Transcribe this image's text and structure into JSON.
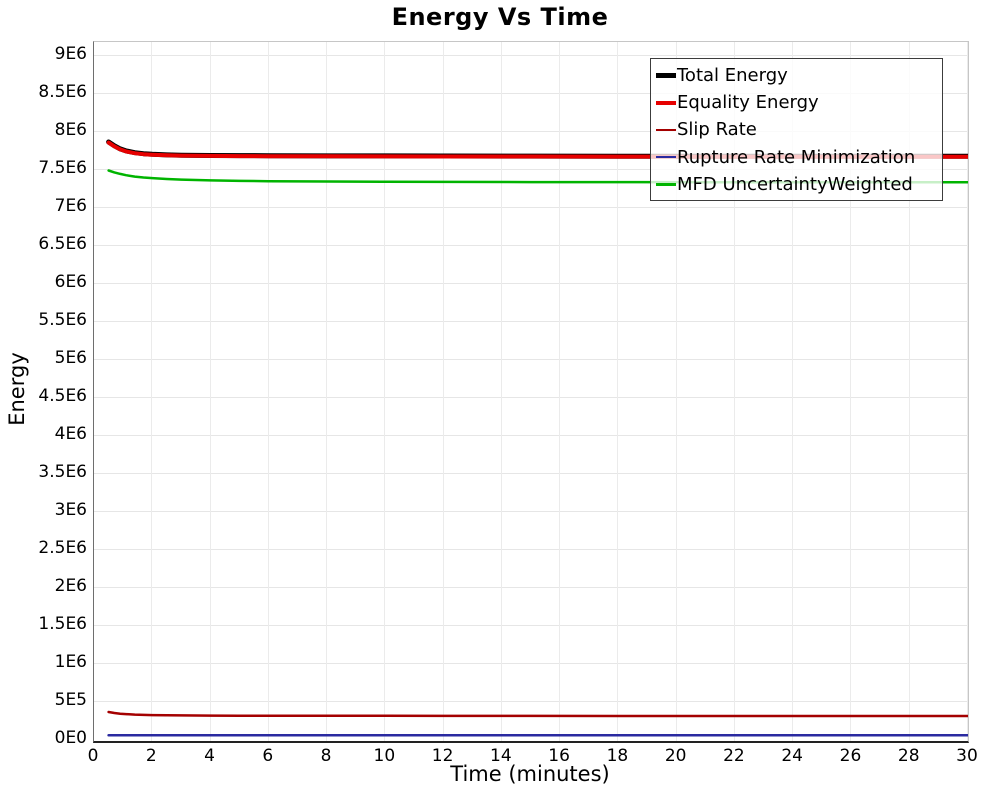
{
  "title": "Energy Vs Time",
  "chart_data": {
    "type": "line",
    "title": "Energy Vs Time",
    "xlabel": "Time (minutes)",
    "ylabel": "Energy",
    "xlim": [
      0,
      30
    ],
    "ylim": [
      0,
      9200000
    ],
    "grid": true,
    "legend_position": "top-right",
    "x_ticks": [
      {
        "v": 0,
        "label": "0"
      },
      {
        "v": 2,
        "label": "2"
      },
      {
        "v": 4,
        "label": "4"
      },
      {
        "v": 6,
        "label": "6"
      },
      {
        "v": 8,
        "label": "8"
      },
      {
        "v": 10,
        "label": "10"
      },
      {
        "v": 12,
        "label": "12"
      },
      {
        "v": 14,
        "label": "14"
      },
      {
        "v": 16,
        "label": "16"
      },
      {
        "v": 18,
        "label": "18"
      },
      {
        "v": 20,
        "label": "20"
      },
      {
        "v": 22,
        "label": "22"
      },
      {
        "v": 24,
        "label": "24"
      },
      {
        "v": 26,
        "label": "26"
      },
      {
        "v": 28,
        "label": "28"
      },
      {
        "v": 30,
        "label": "30"
      }
    ],
    "y_ticks": [
      {
        "v": 0,
        "label": "0E0"
      },
      {
        "v": 500000,
        "label": "5E5"
      },
      {
        "v": 1000000,
        "label": "1E6"
      },
      {
        "v": 1500000,
        "label": "1.5E6"
      },
      {
        "v": 2000000,
        "label": "2E6"
      },
      {
        "v": 2500000,
        "label": "2.5E6"
      },
      {
        "v": 3000000,
        "label": "3E6"
      },
      {
        "v": 3500000,
        "label": "3.5E6"
      },
      {
        "v": 4000000,
        "label": "4E6"
      },
      {
        "v": 4500000,
        "label": "4.5E6"
      },
      {
        "v": 5000000,
        "label": "5E6"
      },
      {
        "v": 5500000,
        "label": "5.5E6"
      },
      {
        "v": 6000000,
        "label": "6E6"
      },
      {
        "v": 6500000,
        "label": "6.5E6"
      },
      {
        "v": 7000000,
        "label": "7E6"
      },
      {
        "v": 7500000,
        "label": "7.5E6"
      },
      {
        "v": 8000000,
        "label": "8E6"
      },
      {
        "v": 8500000,
        "label": "8.5E6"
      },
      {
        "v": 9000000,
        "label": "9E6"
      }
    ],
    "series": [
      {
        "name": "Total Energy",
        "color": "#000000",
        "width": 5,
        "points": [
          [
            0.5,
            7855000
          ],
          [
            0.7,
            7805000
          ],
          [
            0.9,
            7765000
          ],
          [
            1.1,
            7738000
          ],
          [
            1.4,
            7715000
          ],
          [
            1.7,
            7701000
          ],
          [
            2,
            7694000
          ],
          [
            2.5,
            7686000
          ],
          [
            3,
            7682000
          ],
          [
            4,
            7678000
          ],
          [
            5,
            7676000
          ],
          [
            6,
            7675000
          ],
          [
            8,
            7673000
          ],
          [
            10,
            7672000
          ],
          [
            12,
            7671000
          ],
          [
            15,
            7670000
          ],
          [
            18,
            7669000
          ],
          [
            21,
            7668000
          ],
          [
            24,
            7667000
          ],
          [
            27,
            7667000
          ],
          [
            30,
            7667000
          ]
        ]
      },
      {
        "name": "Equality Energy",
        "color": "#e60000",
        "width": 4,
        "points": [
          [
            0.5,
            7848000
          ],
          [
            0.7,
            7798000
          ],
          [
            0.9,
            7758000
          ],
          [
            1.1,
            7731000
          ],
          [
            1.4,
            7708000
          ],
          [
            1.7,
            7695000
          ],
          [
            2,
            7688000
          ],
          [
            2.5,
            7680000
          ],
          [
            3,
            7676000
          ],
          [
            4,
            7672000
          ],
          [
            5,
            7670000
          ],
          [
            6,
            7669000
          ],
          [
            8,
            7667000
          ],
          [
            10,
            7666000
          ],
          [
            12,
            7665000
          ],
          [
            15,
            7664000
          ],
          [
            18,
            7663000
          ],
          [
            21,
            7662000
          ],
          [
            24,
            7661000
          ],
          [
            27,
            7661000
          ],
          [
            30,
            7661000
          ]
        ]
      },
      {
        "name": "Slip Rate",
        "color": "#a40000",
        "width": 2.5,
        "points": [
          [
            0.5,
            355000
          ],
          [
            0.7,
            342000
          ],
          [
            0.9,
            333000
          ],
          [
            1.1,
            327000
          ],
          [
            1.4,
            321000
          ],
          [
            1.7,
            317000
          ],
          [
            2,
            315000
          ],
          [
            2.5,
            312000
          ],
          [
            3,
            310000
          ],
          [
            4,
            308000
          ],
          [
            5,
            307000
          ],
          [
            6,
            306000
          ],
          [
            8,
            305000
          ],
          [
            10,
            305000
          ],
          [
            12,
            304000
          ],
          [
            15,
            304000
          ],
          [
            18,
            303000
          ],
          [
            21,
            303000
          ],
          [
            24,
            303000
          ],
          [
            27,
            302000
          ],
          [
            30,
            302000
          ]
        ]
      },
      {
        "name": "Rupture Rate Minimization",
        "color": "#2a2aa0",
        "width": 2.5,
        "points": [
          [
            0.5,
            50000
          ],
          [
            5,
            50000
          ],
          [
            10,
            50000
          ],
          [
            15,
            50000
          ],
          [
            20,
            50000
          ],
          [
            25,
            50000
          ],
          [
            30,
            50000
          ]
        ]
      },
      {
        "name": "MFD UncertaintyWeighted",
        "color": "#00b400",
        "width": 2.5,
        "points": [
          [
            0.5,
            7480000
          ],
          [
            0.7,
            7455000
          ],
          [
            0.9,
            7435000
          ],
          [
            1.1,
            7418000
          ],
          [
            1.4,
            7400000
          ],
          [
            1.7,
            7388000
          ],
          [
            2,
            7380000
          ],
          [
            2.5,
            7368000
          ],
          [
            3,
            7360000
          ],
          [
            4,
            7350000
          ],
          [
            5,
            7344000
          ],
          [
            6,
            7340000
          ],
          [
            8,
            7335000
          ],
          [
            10,
            7332000
          ],
          [
            12,
            7330000
          ],
          [
            15,
            7328000
          ],
          [
            18,
            7327000
          ],
          [
            21,
            7326000
          ],
          [
            24,
            7325000
          ],
          [
            27,
            7325000
          ],
          [
            30,
            7325000
          ]
        ]
      }
    ]
  }
}
